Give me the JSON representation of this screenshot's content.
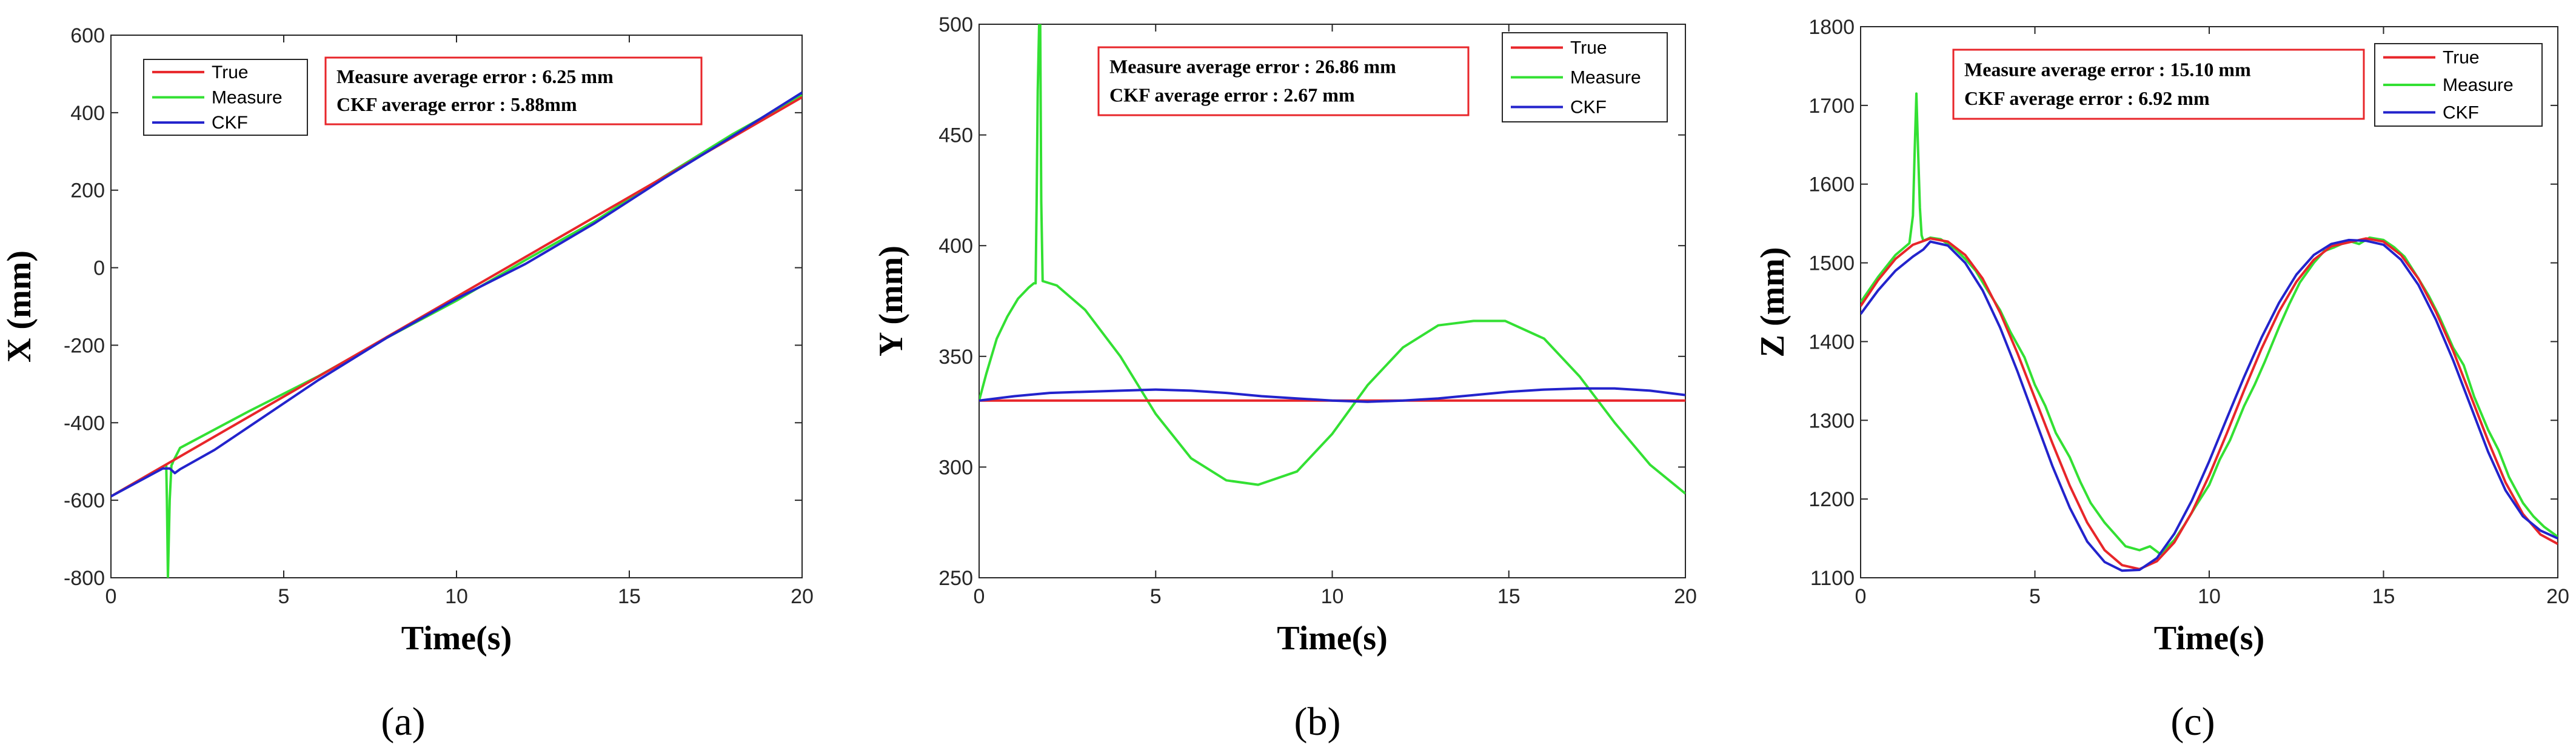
{
  "colors": {
    "true": "#e8262a",
    "measure": "#33e033",
    "ckf": "#2323cc",
    "frame": "#e8262a"
  },
  "chart_data": [
    {
      "type": "line",
      "sublabel": "(a)",
      "xlabel": "Time(s)",
      "ylabel": "X (mm)",
      "xlim": [
        0,
        20
      ],
      "ylim": [
        -800,
        600
      ],
      "xticks": [
        "0",
        "5",
        "10",
        "15",
        "20"
      ],
      "yticks": [
        "600",
        "400",
        "200",
        "0",
        "-200",
        "-400",
        "-600",
        "-800"
      ],
      "legend": [
        "True",
        "Measure",
        "CKF"
      ],
      "annotation": [
        "Measure average error : 6.25 mm",
        "CKF average error        : 5.88mm"
      ],
      "series": [
        {
          "name": "True",
          "x": [
            0,
            20
          ],
          "y": [
            -590,
            440
          ]
        },
        {
          "name": "Measure",
          "x": [
            0,
            1.6,
            1.62,
            1.65,
            1.7,
            1.75,
            1.78,
            1.8,
            2,
            4,
            6,
            8,
            10,
            12,
            14,
            16,
            18,
            20
          ],
          "y": [
            -590,
            -508,
            -600,
            -800,
            -600,
            -510,
            -505,
            -500,
            -465,
            -370,
            -280,
            -180,
            -85,
            20,
            120,
            235,
            345,
            445
          ]
        },
        {
          "name": "CKF",
          "x": [
            0,
            1.5,
            1.7,
            1.85,
            2,
            3,
            4,
            6,
            8,
            10,
            12,
            14,
            16,
            18,
            20
          ],
          "y": [
            -590,
            -518,
            -518,
            -530,
            -520,
            -470,
            -410,
            -290,
            -180,
            -80,
            10,
            115,
            230,
            340,
            452
          ]
        }
      ]
    },
    {
      "type": "line",
      "sublabel": "(b)",
      "xlabel": "Time(s)",
      "ylabel": "Y (mm)",
      "xlim": [
        0,
        20
      ],
      "ylim": [
        250,
        500
      ],
      "xticks": [
        "0",
        "5",
        "10",
        "15",
        "20"
      ],
      "yticks": [
        "500",
        "450",
        "400",
        "350",
        "300",
        "250"
      ],
      "legend": [
        "True",
        "Measure",
        "CKF"
      ],
      "annotation": [
        "Measure average error :  26.86 mm",
        "CKF average error         :  2.67 mm"
      ],
      "series": [
        {
          "name": "True",
          "x": [
            0,
            20
          ],
          "y": [
            330,
            330
          ]
        },
        {
          "name": "Measure",
          "x": [
            0,
            0.2,
            0.5,
            0.8,
            1.1,
            1.4,
            1.55,
            1.6,
            1.63,
            1.66,
            1.7,
            1.73,
            1.76,
            1.8,
            2.2,
            3,
            4,
            5,
            6,
            7,
            7.9,
            9,
            10,
            11,
            12,
            13,
            14,
            14.9,
            16,
            17,
            18,
            19,
            20
          ],
          "y": [
            330,
            342,
            358,
            368,
            376,
            381,
            383,
            383,
            420,
            470,
            500,
            500,
            420,
            384,
            382,
            371,
            350,
            324,
            304,
            294,
            292,
            298,
            315,
            337,
            354,
            364,
            366,
            366,
            358,
            341,
            320,
            301,
            288
          ]
        },
        {
          "name": "CKF",
          "x": [
            0,
            1,
            2,
            3,
            4,
            5,
            6,
            7,
            8,
            9,
            10,
            11,
            12,
            13,
            14,
            15,
            16,
            17,
            18,
            19,
            20
          ],
          "y": [
            330,
            332,
            333.5,
            334,
            334.5,
            335,
            334.5,
            333.5,
            332,
            331,
            330,
            329.5,
            330,
            331,
            332.5,
            334,
            335,
            335.5,
            335.5,
            334.5,
            332.5
          ]
        }
      ]
    },
    {
      "type": "line",
      "sublabel": "(c)",
      "xlabel": "Time(s)",
      "ylabel": "Z (mm)",
      "xlim": [
        0,
        20
      ],
      "ylim": [
        1100,
        1800
      ],
      "xticks": [
        "0",
        "5",
        "10",
        "15",
        "20"
      ],
      "yticks": [
        "1800",
        "1700",
        "1600",
        "1500",
        "1400",
        "1300",
        "1200",
        "1100"
      ],
      "legend": [
        "True",
        "Measure",
        "CKF"
      ],
      "annotation": [
        "Measure average error : 15.10 mm",
        "CKF average error         :  6.92 mm"
      ],
      "series": [
        {
          "name": "True",
          "x": [
            0,
            0.5,
            1,
            1.5,
            2,
            2.5,
            3,
            3.5,
            4,
            4.5,
            5,
            5.5,
            6,
            6.5,
            7,
            7.5,
            8,
            8.5,
            9,
            9.5,
            10,
            10.5,
            11,
            11.5,
            12,
            12.5,
            13,
            13.5,
            14,
            14.5,
            15,
            15.5,
            16,
            16.5,
            17,
            17.5,
            18,
            18.5,
            19,
            19.5,
            20
          ],
          "y": [
            1445,
            1478,
            1505,
            1523,
            1531,
            1527,
            1510,
            1480,
            1437,
            1385,
            1328,
            1271,
            1217,
            1170,
            1135,
            1116,
            1111,
            1121,
            1145,
            1183,
            1230,
            1283,
            1338,
            1391,
            1438,
            1476,
            1504,
            1521,
            1526,
            1531,
            1527,
            1510,
            1480,
            1438,
            1388,
            1331,
            1274,
            1221,
            1181,
            1155,
            1143
          ]
        },
        {
          "name": "Measure",
          "x": [
            0,
            0.5,
            1,
            1.4,
            1.5,
            1.55,
            1.6,
            1.65,
            1.7,
            1.75,
            1.8,
            2,
            2.3,
            2.7,
            3,
            3.3,
            3.6,
            4,
            4.3,
            4.7,
            5,
            5.3,
            5.6,
            6,
            6.3,
            6.6,
            7,
            7.3,
            7.6,
            8,
            8.3,
            8.6,
            9,
            9.3,
            9.6,
            10,
            10.3,
            10.6,
            11,
            11.3,
            11.6,
            12,
            12.3,
            12.6,
            13,
            13.3,
            13.6,
            14,
            14.3,
            14.6,
            15,
            15.3,
            15.6,
            16,
            16.3,
            16.6,
            17,
            17.3,
            17.6,
            18,
            18.3,
            18.6,
            19,
            19.3,
            19.6,
            20
          ],
          "y": [
            1450,
            1482,
            1510,
            1525,
            1560,
            1640,
            1715,
            1640,
            1570,
            1535,
            1528,
            1532,
            1530,
            1518,
            1505,
            1490,
            1468,
            1440,
            1412,
            1380,
            1345,
            1318,
            1284,
            1253,
            1222,
            1195,
            1170,
            1155,
            1140,
            1135,
            1140,
            1130,
            1148,
            1168,
            1190,
            1218,
            1250,
            1275,
            1318,
            1345,
            1375,
            1418,
            1448,
            1475,
            1500,
            1515,
            1520,
            1528,
            1524,
            1532,
            1529,
            1520,
            1508,
            1480,
            1458,
            1432,
            1392,
            1370,
            1330,
            1288,
            1262,
            1228,
            1195,
            1178,
            1165,
            1152
          ]
        },
        {
          "name": "CKF",
          "x": [
            0,
            0.5,
            1,
            1.5,
            1.8,
            2,
            2.5,
            3,
            3.5,
            4,
            4.5,
            5,
            5.5,
            6,
            6.5,
            7,
            7.5,
            8,
            8.5,
            9,
            9.5,
            10,
            10.5,
            11,
            11.5,
            12,
            12.5,
            13,
            13.5,
            14,
            14.5,
            15,
            15.5,
            16,
            16.5,
            17,
            17.5,
            18,
            18.5,
            19,
            19.5,
            20
          ],
          "y": [
            1435,
            1465,
            1490,
            1508,
            1517,
            1527,
            1522,
            1500,
            1465,
            1418,
            1362,
            1302,
            1242,
            1189,
            1146,
            1120,
            1109,
            1110,
            1125,
            1156,
            1198,
            1248,
            1302,
            1355,
            1405,
            1449,
            1485,
            1510,
            1524,
            1529,
            1528,
            1523,
            1504,
            1472,
            1428,
            1376,
            1318,
            1260,
            1211,
            1178,
            1160,
            1150
          ]
        }
      ]
    }
  ]
}
